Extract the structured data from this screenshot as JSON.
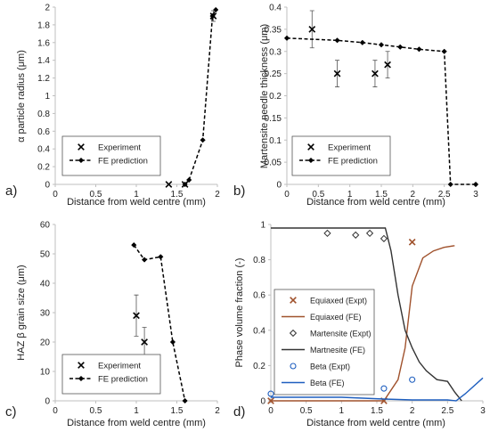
{
  "figure": {
    "panels": [
      {
        "label": "a)",
        "xlabel": "Distance from weld centre (mm)",
        "ylabel": "α particle radius (μm)"
      },
      {
        "label": "b)",
        "xlabel": "Distance from weld centre (mm)",
        "ylabel": "Martensite needle thickness (μm)"
      },
      {
        "label": "c)",
        "xlabel": "Distance from weld centre (mm)",
        "ylabel": "HAZ β grain size (μm)"
      },
      {
        "label": "d)",
        "xlabel": "Distance from weld centre (mm)",
        "ylabel": "Phase volume fraction (-)"
      }
    ]
  },
  "colors": {
    "axis": "#bfbfbf",
    "text": "#222222",
    "series_black": "#000000",
    "equiaxed": "#a0522d",
    "martensite": "#333333",
    "beta": "#1f5fbf"
  },
  "chart_data": [
    {
      "type": "line",
      "panel": "a)",
      "xlabel": "Distance from weld centre (mm)",
      "ylabel": "α particle radius (μm)",
      "xlim": [
        0,
        2
      ],
      "ylim": [
        0,
        2
      ],
      "xticks": [
        0,
        0.5,
        1,
        1.5,
        2
      ],
      "yticks": [
        0,
        0.2,
        0.4,
        0.6,
        0.8,
        1,
        1.2,
        1.4,
        1.6,
        1.8,
        2
      ],
      "grid": false,
      "legend_position": "bottom-left",
      "series": [
        {
          "name": "Experiment",
          "kind": "scatter",
          "marker": "x",
          "color": "#000000",
          "points": [
            {
              "x": 1.4,
              "y": 0,
              "err": 0
            },
            {
              "x": 1.6,
              "y": 0,
              "err": 0
            },
            {
              "x": 1.95,
              "y": 1.9,
              "err": 0.06
            }
          ]
        },
        {
          "name": "FE prediction",
          "kind": "line",
          "dashed": true,
          "marker": "diamond",
          "color": "#000000",
          "points": [
            {
              "x": 1.6,
              "y": 0
            },
            {
              "x": 1.65,
              "y": 0.05
            },
            {
              "x": 1.82,
              "y": 0.5
            },
            {
              "x": 1.94,
              "y": 1.9
            },
            {
              "x": 1.98,
              "y": 1.97
            }
          ]
        }
      ]
    },
    {
      "type": "line",
      "panel": "b)",
      "xlabel": "Distance from weld centre (mm)",
      "ylabel": "Martensite needle thickness (μm)",
      "xlim": [
        0,
        3
      ],
      "ylim": [
        0,
        0.4
      ],
      "xticks": [
        0,
        0.5,
        1,
        1.5,
        2,
        2.5,
        3
      ],
      "yticks": [
        0,
        0.05,
        0.1,
        0.15,
        0.2,
        0.25,
        0.3,
        0.35,
        0.4
      ],
      "grid": false,
      "legend_position": "bottom-left",
      "series": [
        {
          "name": "Experiment",
          "kind": "scatter",
          "marker": "x",
          "color": "#000000",
          "points": [
            {
              "x": 0.4,
              "y": 0.35,
              "err": 0.042
            },
            {
              "x": 0.8,
              "y": 0.25,
              "err": 0.03
            },
            {
              "x": 1.4,
              "y": 0.25,
              "err": 0.03
            },
            {
              "x": 1.6,
              "y": 0.27,
              "err": 0.03
            }
          ]
        },
        {
          "name": "FE prediction",
          "kind": "line",
          "dashed": true,
          "marker": "diamond",
          "color": "#000000",
          "points": [
            {
              "x": 0,
              "y": 0.33
            },
            {
              "x": 0.8,
              "y": 0.325
            },
            {
              "x": 1.2,
              "y": 0.32
            },
            {
              "x": 1.5,
              "y": 0.315
            },
            {
              "x": 1.8,
              "y": 0.31
            },
            {
              "x": 2.1,
              "y": 0.305
            },
            {
              "x": 2.5,
              "y": 0.3
            },
            {
              "x": 2.6,
              "y": 0
            },
            {
              "x": 3.0,
              "y": 0
            }
          ]
        }
      ]
    },
    {
      "type": "line",
      "panel": "c)",
      "xlabel": "Distance from weld centre (mm)",
      "ylabel": "HAZ β grain size (μm)",
      "xlim": [
        0,
        2
      ],
      "ylim": [
        0,
        60
      ],
      "xticks": [
        0,
        0.5,
        1,
        1.5,
        2
      ],
      "yticks": [
        0,
        10,
        20,
        30,
        40,
        50,
        60
      ],
      "grid": false,
      "legend_position": "bottom-left",
      "series": [
        {
          "name": "Experiment",
          "kind": "scatter",
          "marker": "x",
          "color": "#000000",
          "points": [
            {
              "x": 1.0,
              "y": 29,
              "err": 7
            },
            {
              "x": 1.1,
              "y": 20,
              "err": 5
            }
          ]
        },
        {
          "name": "FE prediction",
          "kind": "line",
          "dashed": true,
          "marker": "diamond",
          "color": "#000000",
          "points": [
            {
              "x": 0.97,
              "y": 53
            },
            {
              "x": 1.1,
              "y": 48
            },
            {
              "x": 1.3,
              "y": 49
            },
            {
              "x": 1.45,
              "y": 20
            },
            {
              "x": 1.6,
              "y": 0
            }
          ]
        }
      ]
    },
    {
      "type": "line",
      "panel": "d)",
      "xlabel": "Distance from weld centre (mm)",
      "ylabel": "Phase volume fraction (-)",
      "xlim": [
        0,
        3
      ],
      "ylim": [
        0,
        1
      ],
      "xticks": [
        0,
        0.5,
        1,
        1.5,
        2,
        2.5,
        3
      ],
      "yticks": [
        0,
        0.2,
        0.4,
        0.6,
        0.8,
        1
      ],
      "grid": false,
      "legend_position": "bottom-left",
      "series": [
        {
          "name": "Equiaxed (Expt)",
          "kind": "scatter",
          "marker": "x",
          "color": "#a0522d",
          "points": [
            {
              "x": 0,
              "y": 0
            },
            {
              "x": 1.6,
              "y": 0
            },
            {
              "x": 2.0,
              "y": 0.9
            }
          ]
        },
        {
          "name": "Equiaxed (FE)",
          "kind": "line",
          "color": "#a0522d",
          "points": [
            {
              "x": 0,
              "y": 0
            },
            {
              "x": 1.4,
              "y": 0
            },
            {
              "x": 1.6,
              "y": 0
            },
            {
              "x": 1.8,
              "y": 0.12
            },
            {
              "x": 1.9,
              "y": 0.3
            },
            {
              "x": 2.0,
              "y": 0.65
            },
            {
              "x": 2.15,
              "y": 0.81
            },
            {
              "x": 2.3,
              "y": 0.85
            },
            {
              "x": 2.45,
              "y": 0.87
            },
            {
              "x": 2.6,
              "y": 0.88
            }
          ]
        },
        {
          "name": "Martensite (Expt)",
          "kind": "scatter",
          "marker": "diamond-open",
          "color": "#333333",
          "points": [
            {
              "x": 0.8,
              "y": 0.95
            },
            {
              "x": 1.2,
              "y": 0.94
            },
            {
              "x": 1.4,
              "y": 0.95
            },
            {
              "x": 1.6,
              "y": 0.92
            }
          ]
        },
        {
          "name": "Martnesite (FE)",
          "kind": "line",
          "color": "#333333",
          "points": [
            {
              "x": 0,
              "y": 0.98
            },
            {
              "x": 1.5,
              "y": 0.98
            },
            {
              "x": 1.62,
              "y": 0.98
            },
            {
              "x": 1.7,
              "y": 0.85
            },
            {
              "x": 1.8,
              "y": 0.6
            },
            {
              "x": 1.9,
              "y": 0.4
            },
            {
              "x": 2.0,
              "y": 0.3
            },
            {
              "x": 2.1,
              "y": 0.22
            },
            {
              "x": 2.2,
              "y": 0.17
            },
            {
              "x": 2.35,
              "y": 0.12
            },
            {
              "x": 2.5,
              "y": 0.11
            },
            {
              "x": 2.6,
              "y": 0.05
            },
            {
              "x": 2.7,
              "y": 0
            }
          ]
        },
        {
          "name": "Beta (Expt)",
          "kind": "scatter",
          "marker": "circle-open",
          "color": "#1f5fbf",
          "points": [
            {
              "x": 0,
              "y": 0.04
            },
            {
              "x": 1.6,
              "y": 0.07
            },
            {
              "x": 2.0,
              "y": 0.12
            }
          ]
        },
        {
          "name": "Beta (FE)",
          "kind": "line",
          "color": "#1f5fbf",
          "points": [
            {
              "x": 0,
              "y": 0.02
            },
            {
              "x": 1.0,
              "y": 0.02
            },
            {
              "x": 1.6,
              "y": 0.01
            },
            {
              "x": 2.0,
              "y": 0.005
            },
            {
              "x": 2.5,
              "y": 0.005
            },
            {
              "x": 2.62,
              "y": 0
            },
            {
              "x": 2.75,
              "y": 0.04
            },
            {
              "x": 3.0,
              "y": 0.13
            }
          ]
        }
      ]
    }
  ]
}
